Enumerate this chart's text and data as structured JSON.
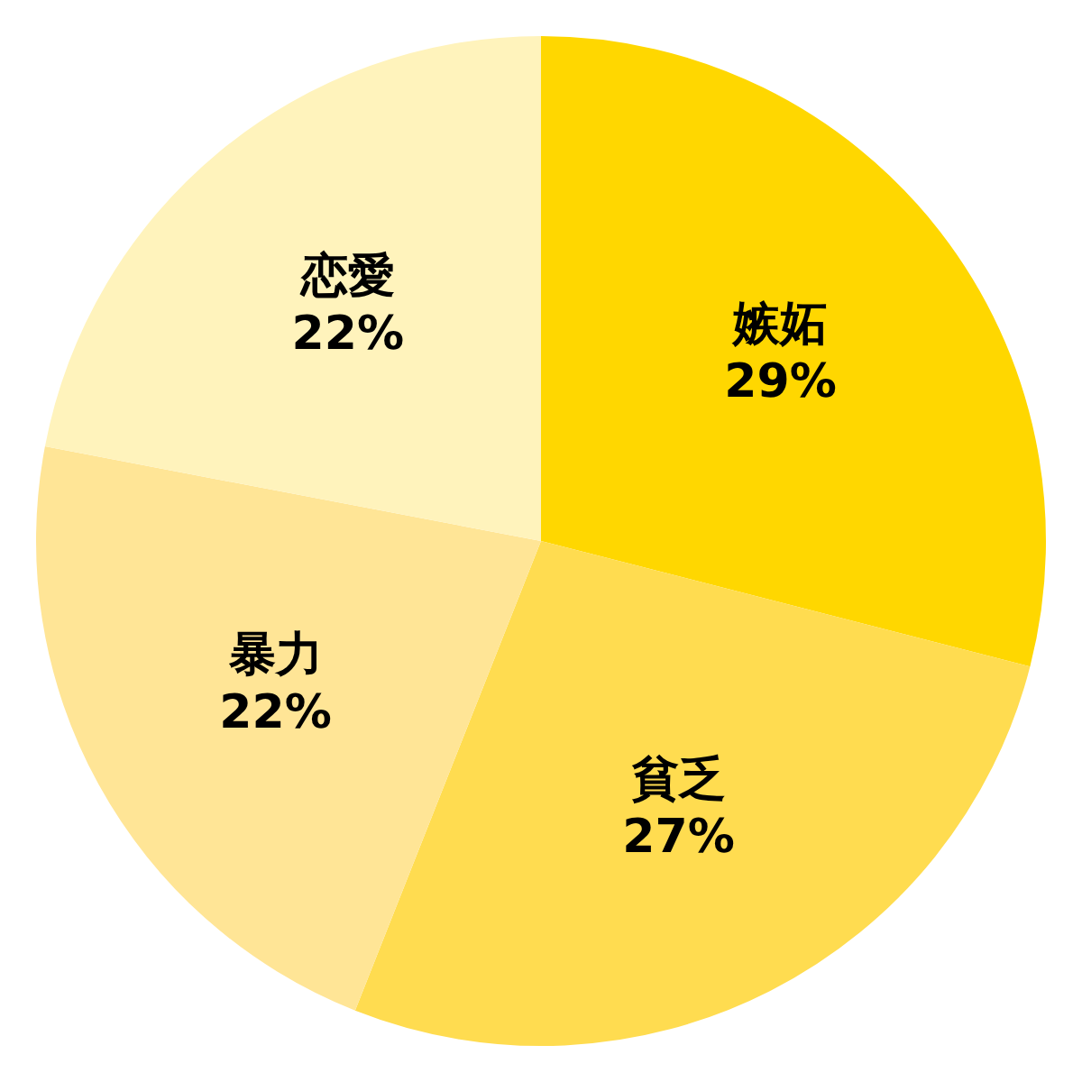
{
  "chart_data": {
    "type": "pie",
    "categories": [
      "嫉妬",
      "貧乏",
      "暴力",
      "恋愛"
    ],
    "values": [
      29,
      27,
      22,
      22
    ],
    "colors": [
      "#ffd700",
      "#ffdc50",
      "#ffe596",
      "#fff3bc"
    ],
    "value_labels": [
      "29%",
      "27%",
      "22%",
      "22%"
    ],
    "legend": false
  }
}
